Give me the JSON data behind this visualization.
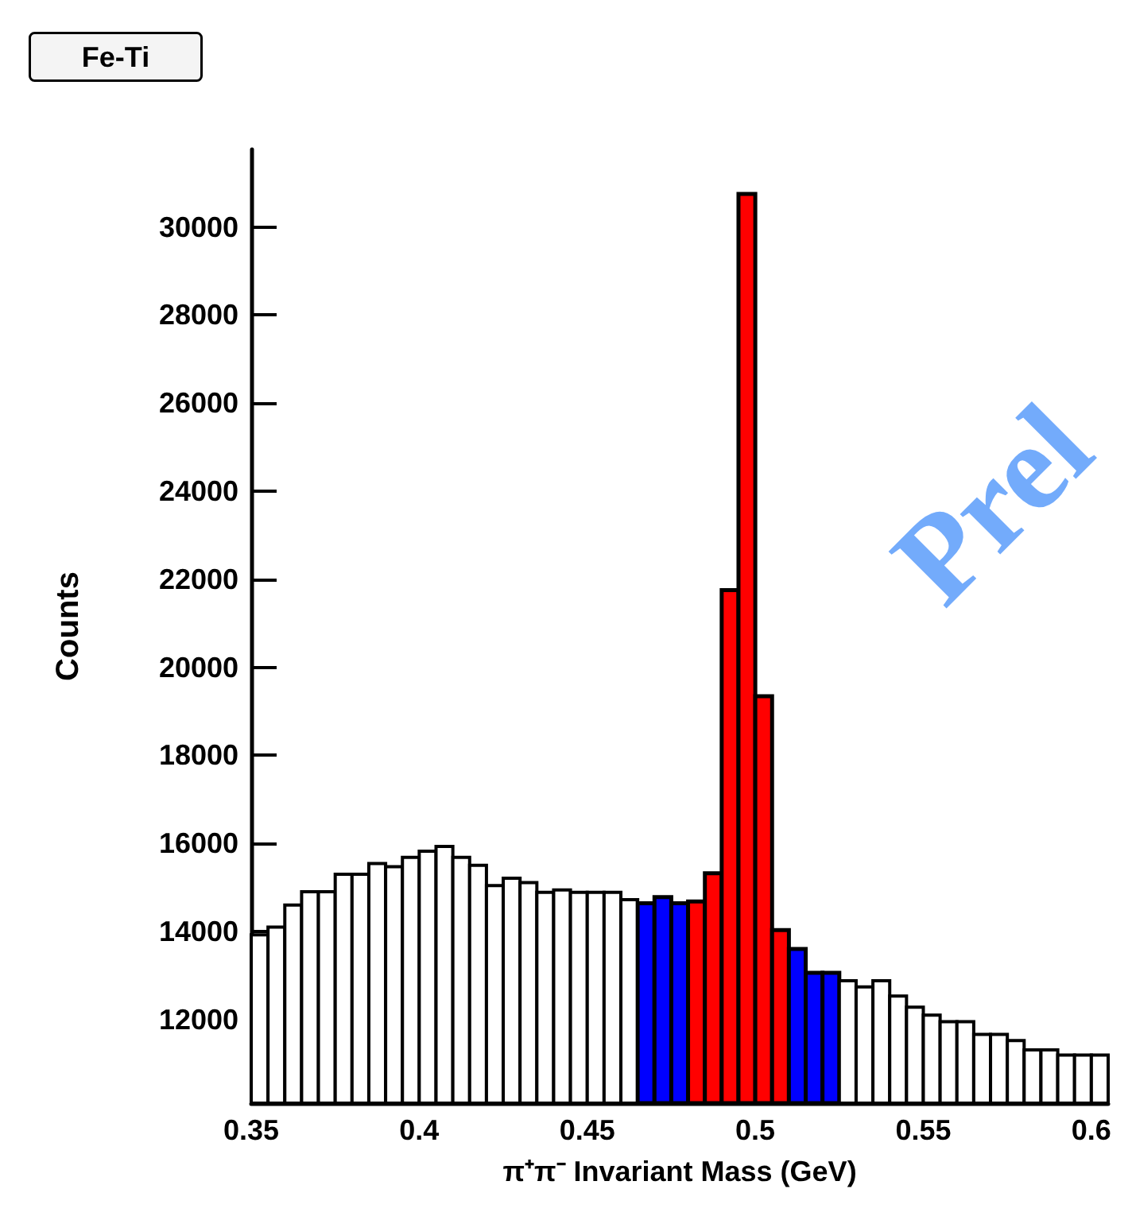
{
  "chart_data": {
    "type": "histogram",
    "title": "Fe-Ti",
    "xlabel": "π⁺π⁻ Invariant Mass (GeV)",
    "ylabel": "Counts",
    "bins": [
      0.35,
      0.355,
      0.36,
      0.365,
      0.37,
      0.375,
      0.38,
      0.385,
      0.39,
      0.395,
      0.4,
      0.405,
      0.41,
      0.415,
      0.42,
      0.425,
      0.43,
      0.435,
      0.44,
      0.445,
      0.45,
      0.455,
      0.46,
      0.465,
      0.47,
      0.475,
      0.48,
      0.485,
      0.49,
      0.495,
      0.5,
      0.505,
      0.51,
      0.515,
      0.52,
      0.525,
      0.53,
      0.535,
      0.54,
      0.545,
      0.55,
      0.555,
      0.56,
      0.565,
      0.57,
      0.575,
      0.58,
      0.585,
      0.59,
      0.595,
      0.6,
      0.605
    ],
    "values": [
      13920,
      14100,
      14600,
      14900,
      14900,
      15300,
      15300,
      15540,
      15470,
      15680,
      15820,
      15930,
      15680,
      15500,
      15040,
      15210,
      15110,
      14890,
      14940,
      14890,
      14890,
      14890,
      14720,
      14640,
      14780,
      14640,
      14680,
      15320,
      21750,
      30750,
      19340,
      14030,
      13600,
      13060,
      13060,
      12880,
      12740,
      12880,
      12530,
      12280,
      12100,
      11950,
      11950,
      11660,
      11660,
      11520,
      11310,
      11310,
      11190,
      11190,
      11190
    ],
    "colors": [
      "#ffffff",
      "#ffffff",
      "#ffffff",
      "#ffffff",
      "#ffffff",
      "#ffffff",
      "#ffffff",
      "#ffffff",
      "#ffffff",
      "#ffffff",
      "#ffffff",
      "#ffffff",
      "#ffffff",
      "#ffffff",
      "#ffffff",
      "#ffffff",
      "#ffffff",
      "#ffffff",
      "#ffffff",
      "#ffffff",
      "#ffffff",
      "#ffffff",
      "#ffffff",
      "#0000ff",
      "#0000ff",
      "#0000ff",
      "#ff0000",
      "#ff0000",
      "#ff0000",
      "#ff0000",
      "#ff0000",
      "#ff0000",
      "#0000ff",
      "#0000ff",
      "#0000ff",
      "#ffffff",
      "#ffffff",
      "#ffffff",
      "#ffffff",
      "#ffffff",
      "#ffffff",
      "#ffffff",
      "#ffffff",
      "#ffffff",
      "#ffffff",
      "#ffffff",
      "#ffffff",
      "#ffffff",
      "#ffffff",
      "#ffffff",
      "#ffffff"
    ],
    "xlim": [
      0.35,
      0.605
    ],
    "xticks": [
      0.35,
      0.4,
      0.45,
      0.5,
      0.55,
      0.6
    ],
    "ylim": [
      10100,
      31760
    ],
    "yticks": [
      12000,
      14000,
      16000,
      18000,
      20000,
      22000,
      24000,
      26000,
      28000,
      30000
    ],
    "annotations": [
      "Prel"
    ],
    "grid": false
  }
}
